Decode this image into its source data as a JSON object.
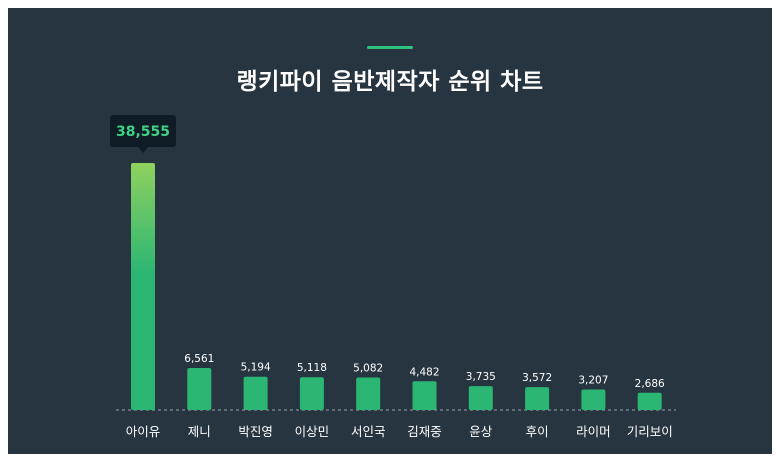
{
  "title": "랭키파이 음반제작자 순위 차트",
  "colors": {
    "background": "#273540",
    "accent": "#2ec27e",
    "bar": "#2bb673",
    "bar_top_highlight": "#8fd15f",
    "tooltip_bg": "#0f1c26",
    "tooltip_text": "#3fd184",
    "label_text": "#ffffff"
  },
  "chart_data": {
    "type": "bar",
    "title": "랭키파이 음반제작자 순위 차트",
    "categories": [
      "아이유",
      "제니",
      "박진영",
      "이상민",
      "서인국",
      "김재중",
      "윤상",
      "후이",
      "라이머",
      "기리보이"
    ],
    "values": [
      38555,
      6561,
      5194,
      5118,
      5082,
      4482,
      3735,
      3572,
      3207,
      2686
    ],
    "value_labels": [
      "38,555",
      "6,561",
      "5,194",
      "5,118",
      "5,082",
      "4,482",
      "3,735",
      "3,572",
      "3,207",
      "2,686"
    ],
    "highlighted_index": 0,
    "ylim": [
      0,
      38555
    ],
    "grid": false,
    "legend": "none"
  }
}
